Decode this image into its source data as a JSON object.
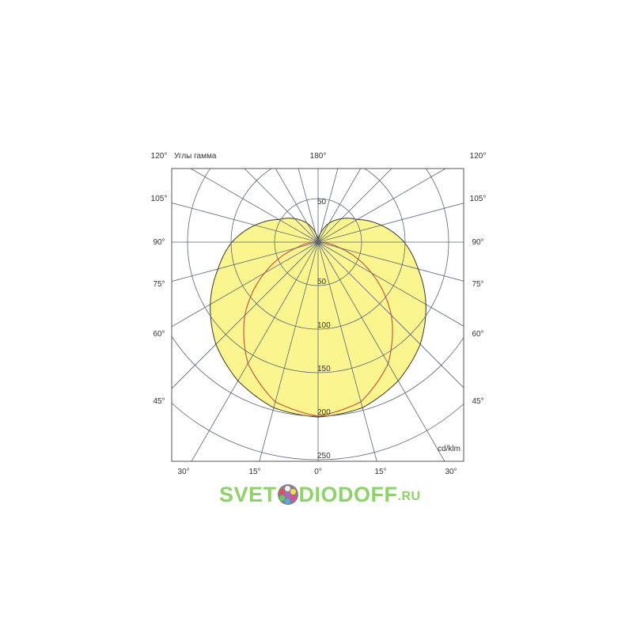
{
  "chart_data": {
    "type": "polar",
    "title": "",
    "corner_label": "Углы гамма",
    "unit_label": "cd/klm",
    "radial_ticks": [
      50,
      100,
      150,
      200,
      250
    ],
    "radial_tick_labels": [
      "50",
      "100",
      "150",
      "200",
      "250"
    ],
    "radial_range": [
      0,
      250
    ],
    "angle_step_deg": 15,
    "angle_labels": {
      "top": "180°",
      "corners": "120°",
      "sides": [
        "105°",
        "90°",
        "75°",
        "60°",
        "45°"
      ],
      "bottom": [
        "30°",
        "15°",
        "0°",
        "15°",
        "30°"
      ]
    },
    "grid": true,
    "gamma": [
      0,
      15,
      30,
      45,
      60,
      75,
      90,
      105,
      120,
      135,
      150,
      165,
      180
    ],
    "series": [
      {
        "color": "#3a3a2a",
        "fill": "#fbf590",
        "values": [
          201,
          197,
          184,
          166,
          143,
          119,
          99,
          75,
          52,
          38,
          25,
          10,
          0
        ]
      },
      {
        "color": "#c0503a",
        "fill": "none",
        "values": [
          200,
          190,
          161,
          119,
          71,
          26,
          0,
          0,
          0,
          0,
          0,
          0,
          0
        ]
      }
    ],
    "grid_color": "#5a6478"
  },
  "watermark": {
    "part1": "SVET",
    "part2": "DIODOFF",
    "suffix": ".RU",
    "dot_colors": [
      "#f4f4f4",
      "#f6e04a",
      "#e04aa0",
      "#4ab0e0",
      "#5fd05a",
      "#e05050",
      "#b060d0"
    ]
  }
}
